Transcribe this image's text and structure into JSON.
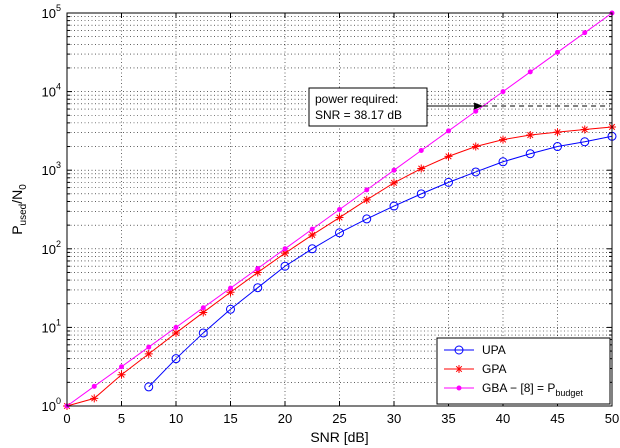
{
  "chart_data": {
    "type": "line",
    "xlabel": "SNR [dB]",
    "ylabel": {
      "base": "P",
      "sub1": "used",
      "mid": "/N",
      "sub2": "0"
    },
    "xlim": [
      0,
      50
    ],
    "ylim": [
      1,
      100000
    ],
    "yscale": "log",
    "grid": true,
    "legend_position": "bottom-right",
    "x_ticks": [
      "0",
      "5",
      "10",
      "15",
      "20",
      "25",
      "30",
      "35",
      "40",
      "45",
      "50"
    ],
    "y_ticks": [
      {
        "base": "10",
        "exp": "0"
      },
      {
        "base": "10",
        "exp": "1"
      },
      {
        "base": "10",
        "exp": "2"
      },
      {
        "base": "10",
        "exp": "3"
      },
      {
        "base": "10",
        "exp": "4"
      },
      {
        "base": "10",
        "exp": "5"
      }
    ],
    "series": [
      {
        "name": "UPA",
        "color": "#0000ff",
        "marker": "circle",
        "x": [
          7.5,
          10,
          12.5,
          15,
          17.5,
          20,
          22.5,
          25,
          27.5,
          30,
          32.5,
          35,
          37.5,
          40,
          42.5,
          45,
          47.5,
          50
        ],
        "y": [
          1.75,
          4.0,
          8.5,
          17,
          32,
          60,
          100,
          160,
          240,
          350,
          500,
          700,
          950,
          1280,
          1620,
          2000,
          2300,
          2700
        ]
      },
      {
        "name": "GPA",
        "color": "#ff0000",
        "marker": "star",
        "x": [
          0,
          2.5,
          5,
          7.5,
          10,
          12.5,
          15,
          17.5,
          20,
          22.5,
          25,
          27.5,
          30,
          32.5,
          35,
          37.5,
          40,
          42.5,
          45,
          47.5,
          50
        ],
        "y": [
          1.0,
          1.25,
          2.5,
          4.6,
          8.5,
          15.5,
          28,
          50,
          88,
          150,
          250,
          420,
          690,
          1050,
          1500,
          2000,
          2450,
          2800,
          3050,
          3300,
          3550
        ]
      },
      {
        "name_parts": {
          "main": "GBA − [8] = P",
          "sub": "budget"
        },
        "color": "#ff00ff",
        "marker": "dot",
        "x": [
          0,
          2.5,
          5,
          7.5,
          10,
          12.5,
          15,
          17.5,
          20,
          22.5,
          25,
          27.5,
          30,
          32.5,
          35,
          37.5,
          40,
          42.5,
          45,
          47.5,
          50
        ],
        "y": [
          1.0,
          1.78,
          3.16,
          5.62,
          10,
          17.8,
          31.6,
          56.2,
          100,
          178,
          316,
          562,
          1000,
          1780,
          3160,
          5620,
          10000,
          17800,
          31600,
          56200,
          100000
        ]
      }
    ],
    "annotation": {
      "lines": [
        "power required:",
        "SNR = 38.17 dB"
      ],
      "point_x": 38.17,
      "point_y": 6560
    }
  }
}
